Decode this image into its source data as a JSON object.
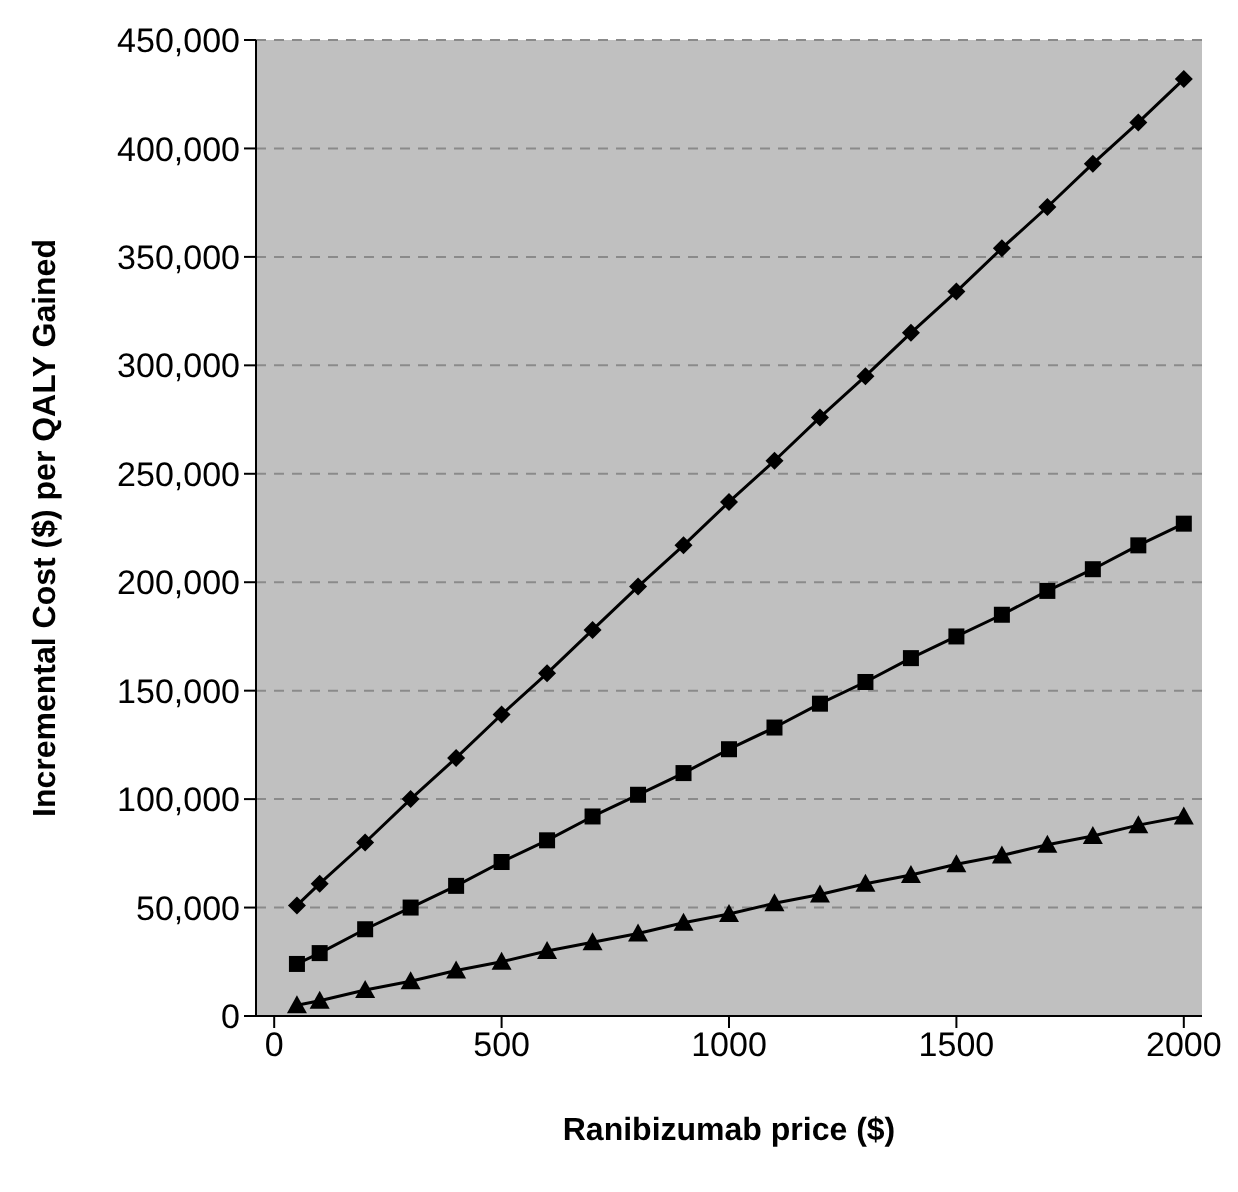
{
  "chart_data": {
    "type": "line",
    "xlabel": "Ranibizumab price ($)",
    "ylabel": "Incremental Cost ($) per QALY Gained",
    "x": [
      50,
      100,
      200,
      300,
      400,
      500,
      600,
      700,
      800,
      900,
      1000,
      1100,
      1200,
      1300,
      1400,
      1500,
      1600,
      1700,
      1800,
      1900,
      2000
    ],
    "series": [
      {
        "color": "#000000",
        "marker": "diamond",
        "values": [
          51000,
          61000,
          80000,
          100000,
          119000,
          139000,
          158000,
          178000,
          198000,
          217000,
          237000,
          256000,
          276000,
          295000,
          315000,
          334000,
          354000,
          373000,
          393000,
          412000,
          432000
        ]
      },
      {
        "color": "#000000",
        "marker": "square",
        "values": [
          24000,
          29000,
          40000,
          50000,
          60000,
          71000,
          81000,
          92000,
          102000,
          112000,
          123000,
          133000,
          144000,
          154000,
          165000,
          175000,
          185000,
          196000,
          206000,
          217000,
          227000
        ]
      },
      {
        "color": "#000000",
        "marker": "triangle",
        "values": [
          5000,
          7000,
          12000,
          16000,
          21000,
          25000,
          30000,
          34000,
          38000,
          43000,
          47000,
          52000,
          56000,
          61000,
          65000,
          70000,
          74000,
          79000,
          83000,
          88000,
          92000
        ]
      }
    ],
    "xlim": [
      -40,
      2040
    ],
    "xticks": [
      0,
      500,
      1000,
      1500,
      2000
    ],
    "ylim": [
      0,
      450000
    ],
    "yticks": [
      0,
      {
        "value": 50000,
        "label": "50,000"
      },
      {
        "value": 100000,
        "label": "100,000"
      },
      {
        "value": 150000,
        "label": "150,000"
      },
      {
        "value": 200000,
        "label": "200,000"
      },
      {
        "value": 250000,
        "label": "250,000"
      },
      {
        "value": 300000,
        "label": "300,000"
      },
      {
        "value": 350000,
        "label": "350,000"
      },
      {
        "value": 400000,
        "label": "400,000"
      },
      {
        "value": 450000,
        "label": "450,000"
      }
    ],
    "grid": "y",
    "legend": false
  }
}
